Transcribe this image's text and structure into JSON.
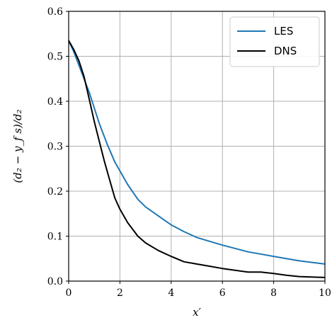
{
  "chart_data": {
    "type": "line",
    "title": "",
    "xlabel": "x′",
    "ylabel": "(d₂ − y_f s)/d₂",
    "xlim": [
      0,
      10
    ],
    "ylim": [
      0,
      0.6
    ],
    "xticks": [
      0,
      2,
      4,
      6,
      8,
      10
    ],
    "xtick_labels": [
      "0",
      "2",
      "4",
      "6",
      "8",
      "10"
    ],
    "yticks": [
      0,
      0.1,
      0.2,
      0.3,
      0.4,
      0.5,
      0.6
    ],
    "ytick_labels": [
      "0.0",
      "0.1",
      "0.2",
      "0.3",
      "0.4",
      "0.5",
      "0.6"
    ],
    "grid": true,
    "legend_position": "top-right",
    "series": [
      {
        "name": "LES",
        "color": "#1f77b4",
        "x": [
          0,
          0.2,
          0.4,
          0.6,
          0.8,
          1.0,
          1.2,
          1.5,
          1.8,
          2.0,
          2.3,
          2.7,
          3.0,
          3.5,
          4.0,
          4.5,
          5.0,
          6.0,
          7.0,
          8.0,
          9.0,
          10.0
        ],
        "y": [
          0.535,
          0.51,
          0.48,
          0.45,
          0.42,
          0.385,
          0.35,
          0.305,
          0.265,
          0.245,
          0.215,
          0.182,
          0.165,
          0.145,
          0.125,
          0.11,
          0.097,
          0.08,
          0.065,
          0.055,
          0.045,
          0.038
        ]
      },
      {
        "name": "DNS",
        "color": "#000000",
        "x": [
          0,
          0.2,
          0.4,
          0.6,
          0.8,
          1.0,
          1.2,
          1.4,
          1.6,
          1.8,
          2.0,
          2.3,
          2.7,
          3.0,
          3.5,
          4.0,
          4.5,
          5.0,
          5.5,
          6.0,
          6.5,
          7.0,
          7.5,
          8.0,
          8.5,
          9.0,
          9.5,
          10.0
        ],
        "y": [
          0.535,
          0.515,
          0.49,
          0.455,
          0.405,
          0.355,
          0.31,
          0.265,
          0.225,
          0.185,
          0.16,
          0.13,
          0.1,
          0.085,
          0.068,
          0.055,
          0.043,
          0.038,
          0.033,
          0.028,
          0.024,
          0.02,
          0.02,
          0.017,
          0.013,
          0.01,
          0.009,
          0.008
        ]
      }
    ]
  }
}
